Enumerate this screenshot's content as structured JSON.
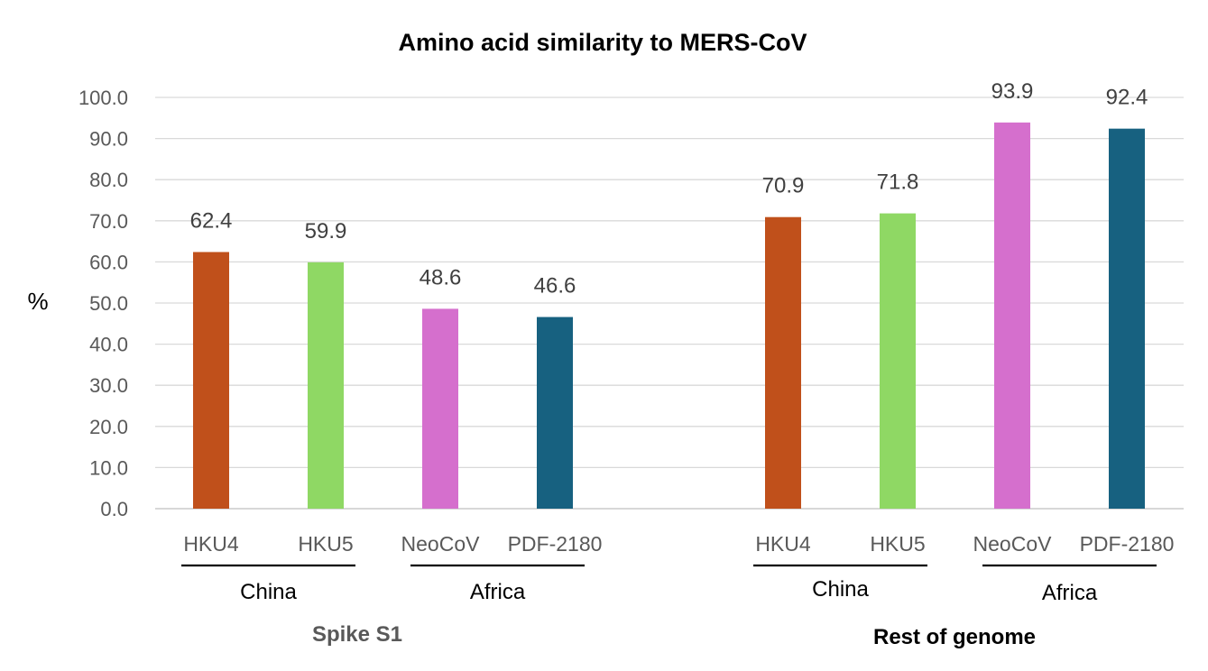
{
  "chart_data": {
    "type": "bar",
    "title": "Amino acid similarity to MERS-CoV",
    "ylabel": "%",
    "ylim": [
      0,
      100
    ],
    "yticks": [
      "0.0",
      "10.0",
      "20.0",
      "30.0",
      "40.0",
      "50.0",
      "60.0",
      "70.0",
      "80.0",
      "90.0",
      "100.0"
    ],
    "grid": true,
    "groups": [
      {
        "name": "Spike S1",
        "regions": [
          {
            "name": "China",
            "bars": [
              {
                "category": "HKU4",
                "value": 62.4,
                "label": "62.4",
                "color": "#c0501b"
              },
              {
                "category": "HKU5",
                "value": 59.9,
                "label": "59.9",
                "color": "#8fd864"
              }
            ]
          },
          {
            "name": "Africa",
            "bars": [
              {
                "category": "NeoCoV",
                "value": 48.6,
                "label": "48.6",
                "color": "#d56fcd"
              },
              {
                "category": "PDF-2180",
                "value": 46.6,
                "label": "46.6",
                "color": "#176180"
              }
            ]
          }
        ]
      },
      {
        "name": "Rest of genome",
        "regions": [
          {
            "name": "China",
            "bars": [
              {
                "category": "HKU4",
                "value": 70.9,
                "label": "70.9",
                "color": "#c0501b"
              },
              {
                "category": "HKU5",
                "value": 71.8,
                "label": "71.8",
                "color": "#8fd864"
              }
            ]
          },
          {
            "name": "Africa",
            "bars": [
              {
                "category": "NeoCoV",
                "value": 93.9,
                "label": "93.9",
                "color": "#d56fcd"
              },
              {
                "category": "PDF-2180",
                "value": 92.4,
                "label": "92.4",
                "color": "#176180"
              }
            ]
          }
        ]
      }
    ]
  }
}
